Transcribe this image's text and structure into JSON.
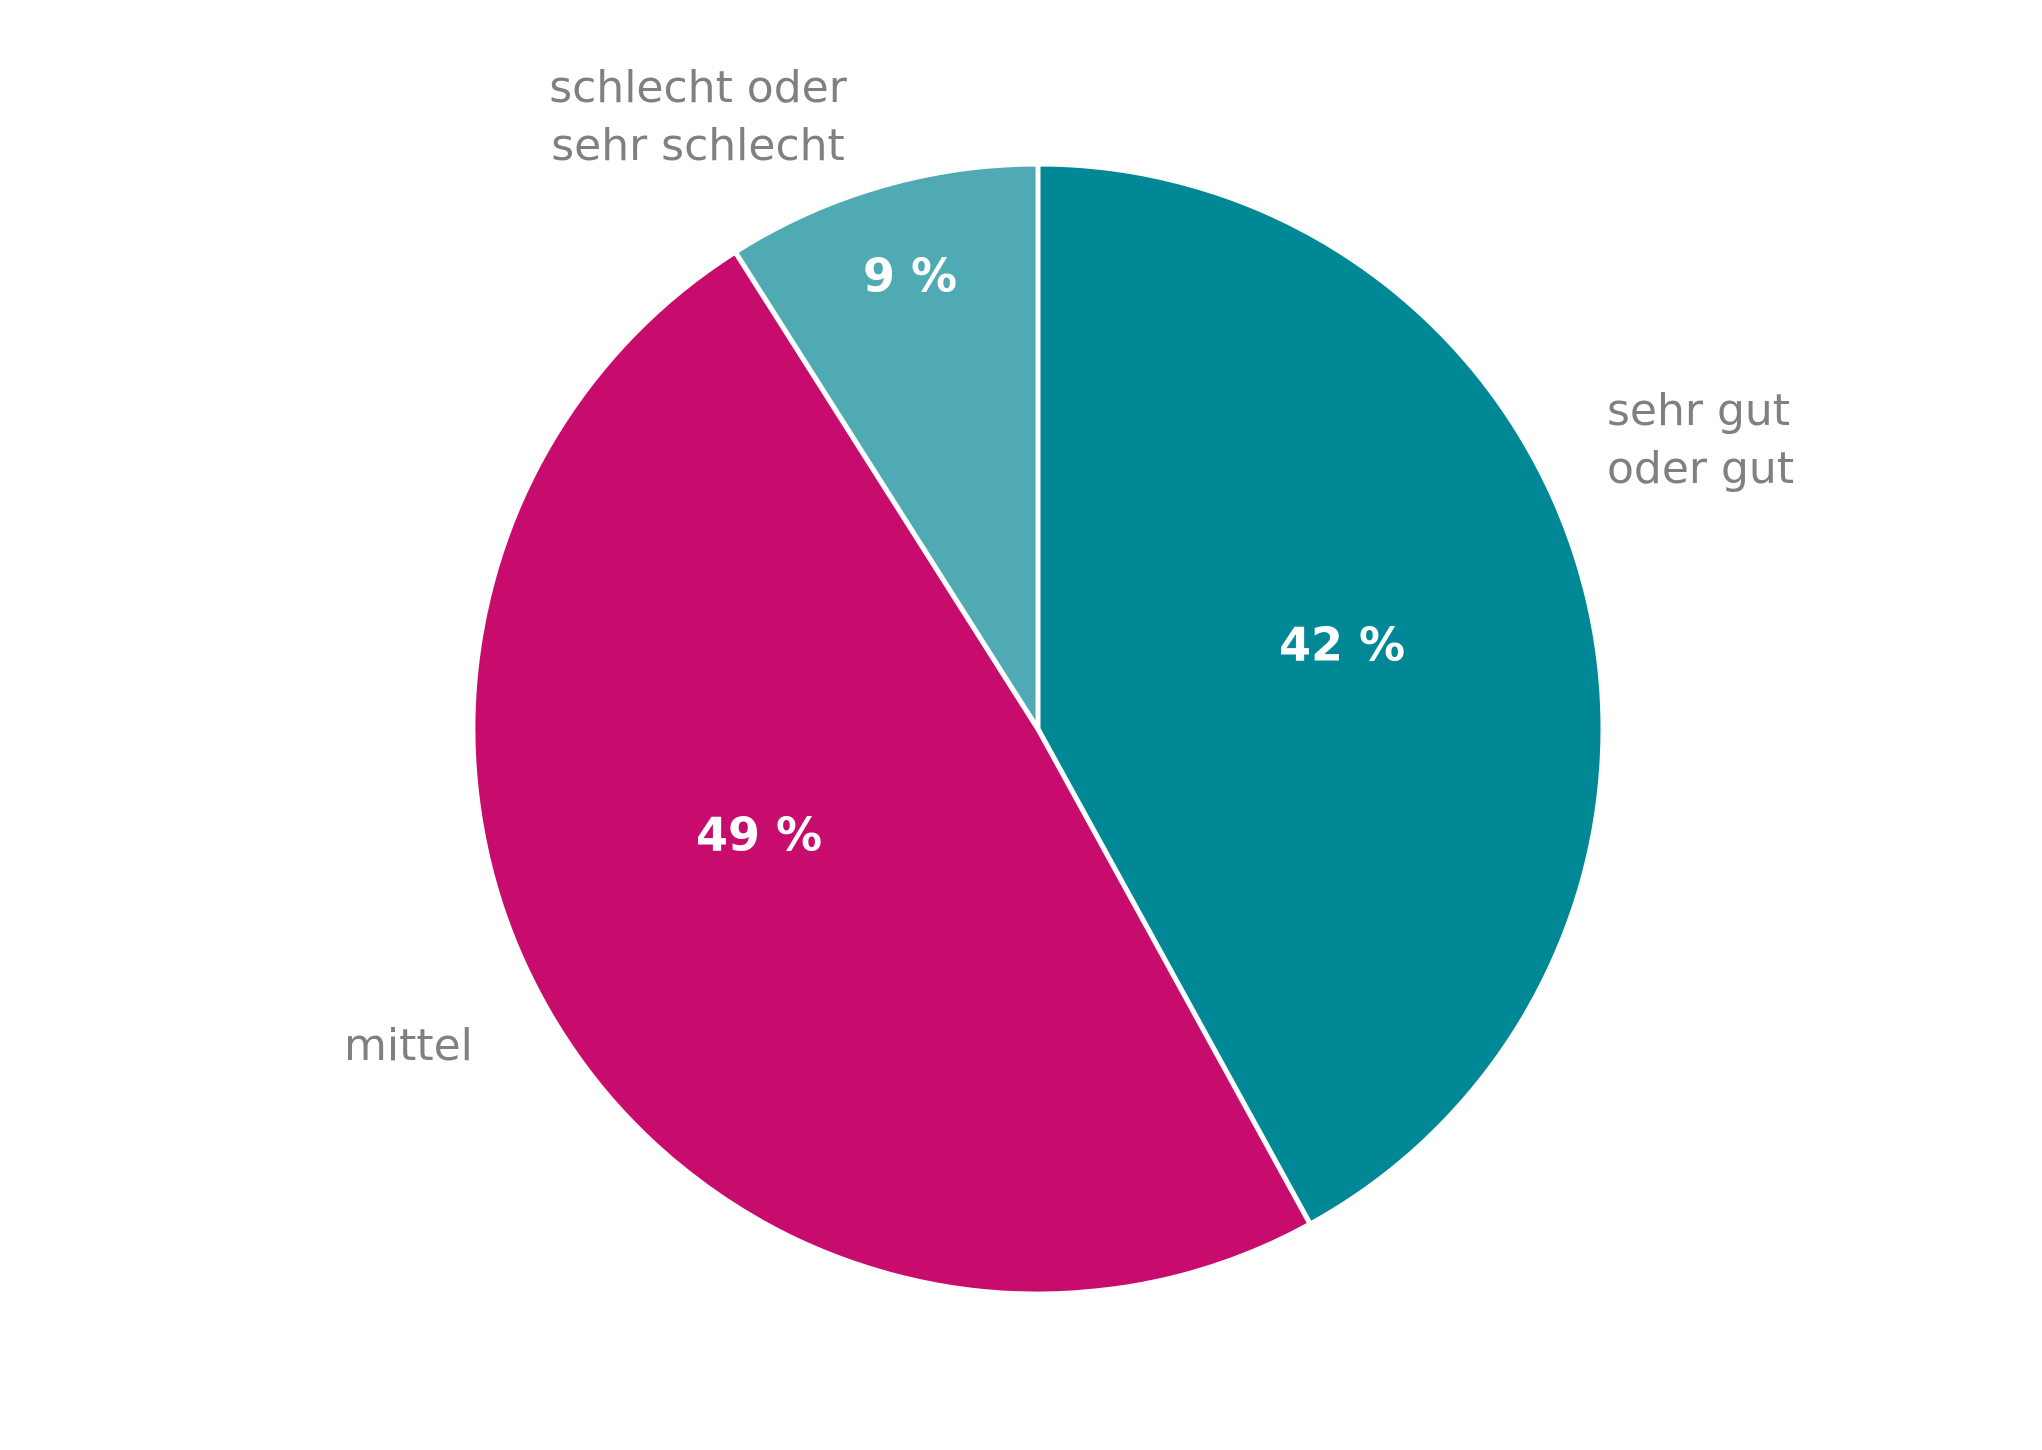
{
  "chart_data": {
    "type": "pie",
    "categories": [
      "sehr gut\noder gut",
      "mittel",
      "schlecht oder\nsehr schlecht"
    ],
    "values": [
      42,
      49,
      9
    ],
    "value_labels": [
      "42 %",
      "49 %",
      "9 %"
    ],
    "colors": [
      "#008896",
      "#c80c6e",
      "#4faab4"
    ]
  }
}
